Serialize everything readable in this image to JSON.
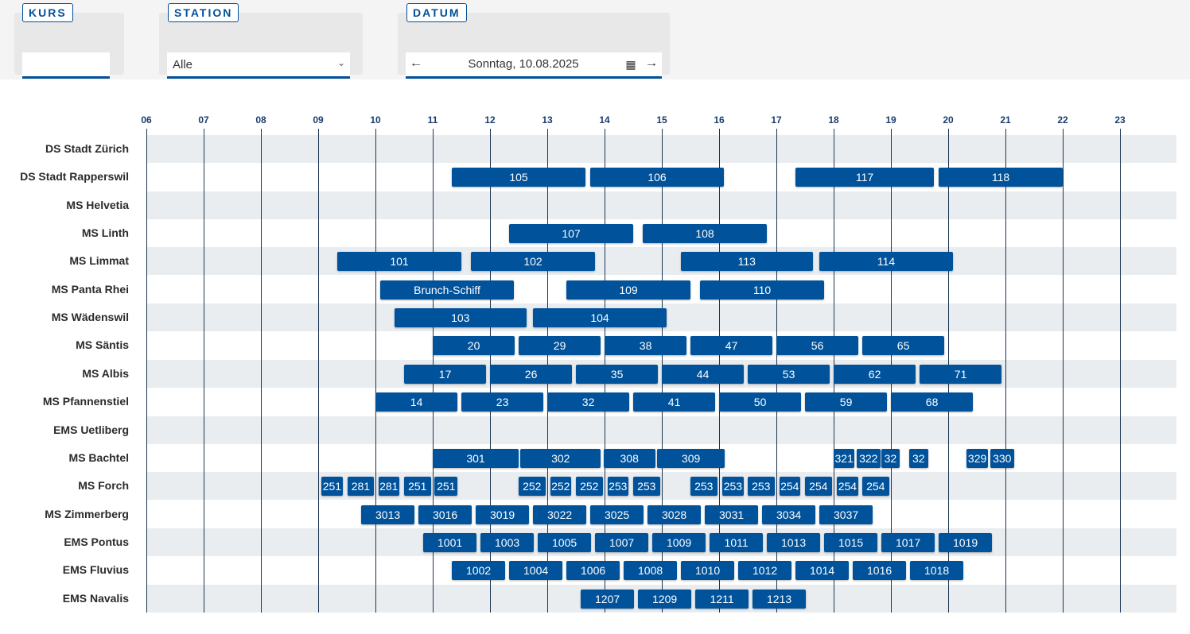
{
  "filters": {
    "kurs": {
      "label": "KURS",
      "value": ""
    },
    "station": {
      "label": "STATION",
      "value": "Alle"
    },
    "datum": {
      "label": "DATUM",
      "value": "Sonntag, 10.08.2025"
    }
  },
  "icons": {
    "prev": "arrow-left-icon",
    "calendar": "calendar-icon",
    "next": "arrow-right-icon",
    "dropdown": "chevron-down-icon"
  },
  "colors": {
    "bar": "#00529b",
    "accent": "#00509a",
    "band": "#e9edf0"
  },
  "chart_data": {
    "type": "gantt",
    "hours": [
      "06",
      "07",
      "08",
      "09",
      "10",
      "11",
      "12",
      "13",
      "14",
      "15",
      "16",
      "17",
      "18",
      "19",
      "20",
      "21",
      "22",
      "23"
    ],
    "rows": [
      {
        "name": "DS Stadt Zürich",
        "trips": []
      },
      {
        "name": "DS Stadt Rapperswil",
        "trips": [
          {
            "label": "105",
            "start": "11:20",
            "end": "13:40"
          },
          {
            "label": "106",
            "start": "13:45",
            "end": "16:05"
          },
          {
            "label": "117",
            "start": "17:20",
            "end": "19:45"
          },
          {
            "label": "118",
            "start": "19:50",
            "end": "22:00"
          }
        ]
      },
      {
        "name": "MS Helvetia",
        "trips": []
      },
      {
        "name": "MS Linth",
        "trips": [
          {
            "label": "107",
            "start": "12:20",
            "end": "14:30"
          },
          {
            "label": "108",
            "start": "14:40",
            "end": "16:50"
          }
        ]
      },
      {
        "name": "MS Limmat",
        "trips": [
          {
            "label": "101",
            "start": "09:20",
            "end": "11:30"
          },
          {
            "label": "102",
            "start": "11:40",
            "end": "13:50"
          },
          {
            "label": "113",
            "start": "15:20",
            "end": "17:38"
          },
          {
            "label": "114",
            "start": "17:45",
            "end": "20:05"
          }
        ]
      },
      {
        "name": "MS Panta Rhei",
        "trips": [
          {
            "label": "Brunch-Schiff",
            "start": "10:05",
            "end": "12:25"
          },
          {
            "label": "109",
            "start": "13:20",
            "end": "15:30"
          },
          {
            "label": "110",
            "start": "15:40",
            "end": "17:50"
          }
        ]
      },
      {
        "name": "MS Wädenswil",
        "trips": [
          {
            "label": "103",
            "start": "10:20",
            "end": "12:38"
          },
          {
            "label": "104",
            "start": "12:45",
            "end": "15:05"
          }
        ]
      },
      {
        "name": "MS Säntis",
        "trips": [
          {
            "label": "20",
            "start": "11:00",
            "end": "12:26"
          },
          {
            "label": "29",
            "start": "12:30",
            "end": "13:56"
          },
          {
            "label": "38",
            "start": "14:00",
            "end": "15:26"
          },
          {
            "label": "47",
            "start": "15:30",
            "end": "16:56"
          },
          {
            "label": "56",
            "start": "17:00",
            "end": "18:26"
          },
          {
            "label": "65",
            "start": "18:30",
            "end": "19:56"
          }
        ]
      },
      {
        "name": "MS Albis",
        "trips": [
          {
            "label": "17",
            "start": "10:30",
            "end": "11:56"
          },
          {
            "label": "26",
            "start": "12:00",
            "end": "13:26"
          },
          {
            "label": "35",
            "start": "13:30",
            "end": "14:56"
          },
          {
            "label": "44",
            "start": "15:00",
            "end": "16:26"
          },
          {
            "label": "53",
            "start": "16:30",
            "end": "17:56"
          },
          {
            "label": "62",
            "start": "18:00",
            "end": "19:26"
          },
          {
            "label": "71",
            "start": "19:30",
            "end": "20:56"
          }
        ]
      },
      {
        "name": "MS Pfannenstiel",
        "trips": [
          {
            "label": "14",
            "start": "10:00",
            "end": "11:26"
          },
          {
            "label": "23",
            "start": "11:30",
            "end": "12:56"
          },
          {
            "label": "32",
            "start": "13:00",
            "end": "14:26"
          },
          {
            "label": "41",
            "start": "14:30",
            "end": "15:56"
          },
          {
            "label": "50",
            "start": "16:00",
            "end": "17:26"
          },
          {
            "label": "59",
            "start": "17:30",
            "end": "18:56"
          },
          {
            "label": "68",
            "start": "19:00",
            "end": "20:26"
          }
        ]
      },
      {
        "name": "EMS Uetliberg",
        "trips": []
      },
      {
        "name": "MS Bachtel",
        "trips": [
          {
            "label": "301",
            "start": "11:00",
            "end": "12:30"
          },
          {
            "label": "302",
            "start": "12:32",
            "end": "13:56"
          },
          {
            "label": "308",
            "start": "13:59",
            "end": "14:53"
          },
          {
            "label": "309",
            "start": "14:55",
            "end": "16:06"
          },
          {
            "label": "321",
            "start": "18:00",
            "end": "18:22"
          },
          {
            "label": "322",
            "start": "18:24",
            "end": "18:49"
          },
          {
            "label": "32",
            "start": "18:50",
            "end": "19:09"
          },
          {
            "label": "32",
            "start": "19:19",
            "end": "19:39"
          },
          {
            "label": "329",
            "start": "20:19",
            "end": "20:42"
          },
          {
            "label": "330",
            "start": "20:44",
            "end": "21:09"
          }
        ]
      },
      {
        "name": "MS Forch",
        "trips": [
          {
            "label": "251",
            "start": "09:03",
            "end": "09:26"
          },
          {
            "label": "281",
            "start": "09:31",
            "end": "09:58"
          },
          {
            "label": "281",
            "start": "10:03",
            "end": "10:25"
          },
          {
            "label": "251",
            "start": "10:30",
            "end": "10:58"
          },
          {
            "label": "251",
            "start": "11:02",
            "end": "11:26"
          },
          {
            "label": "252",
            "start": "12:30",
            "end": "12:58"
          },
          {
            "label": "252",
            "start": "13:03",
            "end": "13:25"
          },
          {
            "label": "252",
            "start": "13:30",
            "end": "13:58"
          },
          {
            "label": "253",
            "start": "14:03",
            "end": "14:25"
          },
          {
            "label": "253",
            "start": "14:30",
            "end": "14:58"
          },
          {
            "label": "253",
            "start": "15:30",
            "end": "15:58"
          },
          {
            "label": "253",
            "start": "16:03",
            "end": "16:26"
          },
          {
            "label": "253",
            "start": "16:30",
            "end": "16:58"
          },
          {
            "label": "254",
            "start": "17:03",
            "end": "17:25"
          },
          {
            "label": "254",
            "start": "17:30",
            "end": "17:58"
          },
          {
            "label": "254",
            "start": "18:03",
            "end": "18:26"
          },
          {
            "label": "254",
            "start": "18:30",
            "end": "18:58"
          }
        ]
      },
      {
        "name": "MS Zimmerberg",
        "trips": [
          {
            "label": "3013",
            "start": "09:45",
            "end": "10:41"
          },
          {
            "label": "3016",
            "start": "10:45",
            "end": "11:41"
          },
          {
            "label": "3019",
            "start": "11:45",
            "end": "12:41"
          },
          {
            "label": "3022",
            "start": "12:45",
            "end": "13:41"
          },
          {
            "label": "3025",
            "start": "13:45",
            "end": "14:41"
          },
          {
            "label": "3028",
            "start": "14:45",
            "end": "15:41"
          },
          {
            "label": "3031",
            "start": "15:45",
            "end": "16:41"
          },
          {
            "label": "3034",
            "start": "16:45",
            "end": "17:41"
          },
          {
            "label": "3037",
            "start": "17:45",
            "end": "18:41"
          }
        ]
      },
      {
        "name": "EMS Pontus",
        "trips": [
          {
            "label": "1001",
            "start": "10:50",
            "end": "11:46"
          },
          {
            "label": "1003",
            "start": "11:50",
            "end": "12:46"
          },
          {
            "label": "1005",
            "start": "12:50",
            "end": "13:46"
          },
          {
            "label": "1007",
            "start": "13:50",
            "end": "14:46"
          },
          {
            "label": "1009",
            "start": "14:50",
            "end": "15:46"
          },
          {
            "label": "1011",
            "start": "15:50",
            "end": "16:46"
          },
          {
            "label": "1013",
            "start": "16:50",
            "end": "17:46"
          },
          {
            "label": "1015",
            "start": "17:50",
            "end": "18:46"
          },
          {
            "label": "1017",
            "start": "18:50",
            "end": "19:46"
          },
          {
            "label": "1019",
            "start": "19:50",
            "end": "20:46"
          }
        ]
      },
      {
        "name": "EMS Fluvius",
        "trips": [
          {
            "label": "1002",
            "start": "11:20",
            "end": "12:16"
          },
          {
            "label": "1004",
            "start": "12:20",
            "end": "13:16"
          },
          {
            "label": "1006",
            "start": "13:20",
            "end": "14:16"
          },
          {
            "label": "1008",
            "start": "14:20",
            "end": "15:16"
          },
          {
            "label": "1010",
            "start": "15:20",
            "end": "16:16"
          },
          {
            "label": "1012",
            "start": "16:20",
            "end": "17:16"
          },
          {
            "label": "1014",
            "start": "17:20",
            "end": "18:16"
          },
          {
            "label": "1016",
            "start": "18:20",
            "end": "19:16"
          },
          {
            "label": "1018",
            "start": "19:20",
            "end": "20:16"
          }
        ]
      },
      {
        "name": "EMS Navalis",
        "trips": [
          {
            "label": "1207",
            "start": "13:35",
            "end": "14:31"
          },
          {
            "label": "1209",
            "start": "14:35",
            "end": "15:31"
          },
          {
            "label": "1211",
            "start": "15:35",
            "end": "16:31"
          },
          {
            "label": "1213",
            "start": "16:35",
            "end": "17:31"
          }
        ]
      }
    ]
  }
}
